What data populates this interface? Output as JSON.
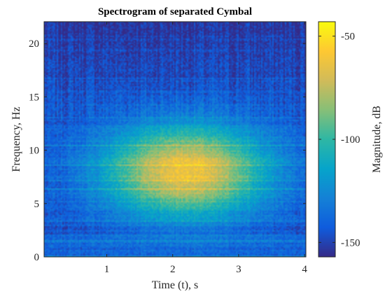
{
  "chart_data": {
    "type": "heatmap",
    "title": "Spectrogram of separated Cymbal",
    "xlabel": "Time (t), s",
    "ylabel": "Frequency, Hz",
    "colorbar_label": "Magnitude, dB",
    "xlim": [
      0.05,
      4.02
    ],
    "ylim": [
      0,
      22.05
    ],
    "xticks": [
      1,
      2,
      3,
      4
    ],
    "yticks": [
      0,
      5,
      10,
      15,
      20
    ],
    "colorbar_ticks": [
      -50,
      -100,
      -150
    ],
    "clim": [
      -157,
      -43
    ],
    "colormap": "parula",
    "grid": false,
    "energy_peak": {
      "time_s": 2.2,
      "frequency_hz": 8,
      "magnitude_db": -60
    },
    "noise_floor_db": -145,
    "colormap_stops": [
      "#352a87",
      "#0f5cdd",
      "#1481d6",
      "#06a4ca",
      "#2eb7a4",
      "#87bf77",
      "#d1bb59",
      "#fec832",
      "#f9fb0e"
    ]
  }
}
